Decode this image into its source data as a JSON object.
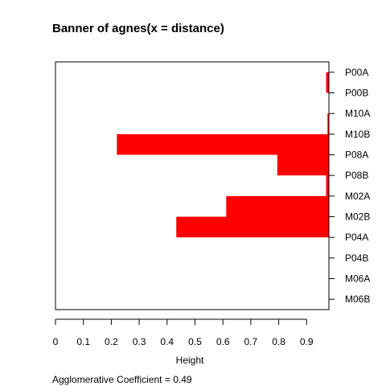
{
  "chart_data": {
    "type": "bar",
    "title": "Banner of  agnes(x = distance)",
    "xlabel": "Height",
    "ylabel": "",
    "xlim": [
      0,
      0.98
    ],
    "x_ticks": [
      "0",
      "0.1",
      "0.2",
      "0.3",
      "0.4",
      "0.5",
      "0.6",
      "0.7",
      "0.8",
      "0.9"
    ],
    "observations": [
      "P00A",
      "P00B",
      "M10A",
      "M10B",
      "P08A",
      "P08B",
      "M02A",
      "M02B",
      "P04A",
      "P04B",
      "M06A",
      "M06B"
    ],
    "merge_heights": [
      0.97,
      0,
      0.975,
      0.22,
      0.795,
      0.97,
      0.612,
      0.433
    ],
    "legend": "none",
    "grid": false,
    "colors": {
      "bars": "#ff0000",
      "axes": "#000000",
      "background": "#ffffff"
    },
    "footer": "Agglomerative Coefficient =  0.49"
  }
}
